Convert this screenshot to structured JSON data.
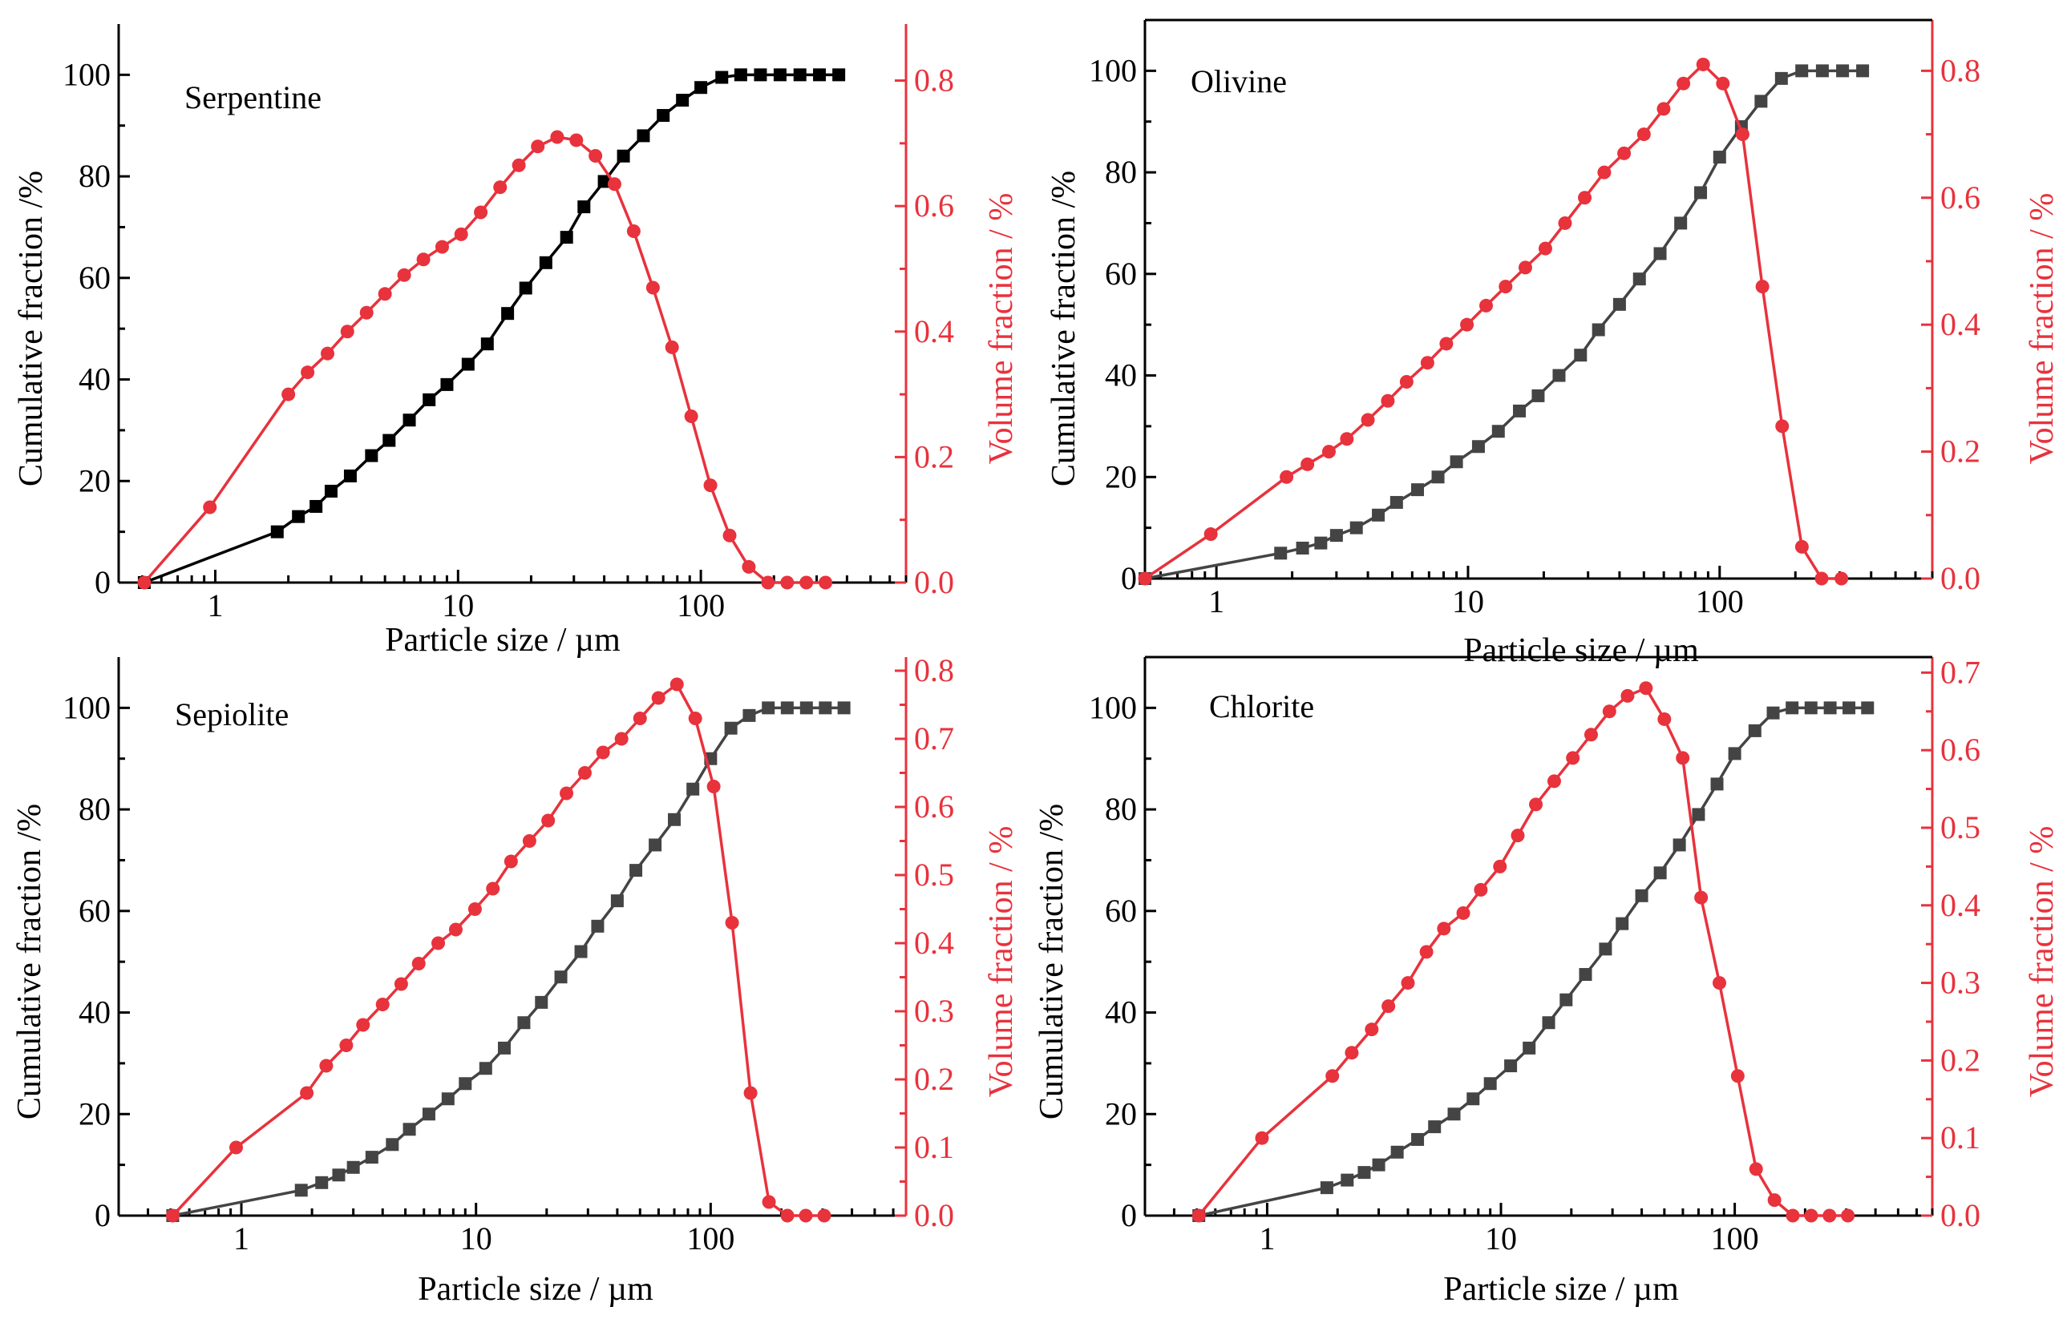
{
  "colors": {
    "cumulative": "#000000",
    "cumulative_gray": "#444444",
    "volume": "#e8323c"
  },
  "chart_data": [
    {
      "type": "line",
      "title": "Serpentine",
      "xlabel": "Particle size / µm",
      "ylabel_left": "Cumulative fraction /%",
      "ylabel_right": "Volume fraction / %",
      "xscale": "log",
      "xlim": [
        0.4,
        700
      ],
      "ylim_left": [
        0,
        110
      ],
      "ylim_right": [
        0,
        0.8901
      ],
      "x_ticks": [
        1,
        10,
        100
      ],
      "x_tick_labels": [
        "1",
        "10",
        "100"
      ],
      "y_left_ticks": [
        0,
        20,
        40,
        60,
        80,
        100
      ],
      "y_left_tick_labels": [
        "0",
        "20",
        "40",
        "60",
        "80",
        "100"
      ],
      "y_right_ticks": [
        0,
        0.2,
        0.4,
        0.6,
        0.8
      ],
      "y_right_tick_labels": [
        "0.0",
        "0.2",
        "0.4",
        "0.6",
        "0.8"
      ],
      "legend": "none",
      "series": [
        {
          "name": "Cumulative fraction",
          "axis": "left",
          "marker": "square",
          "color": "#000000",
          "x": [
            0.51,
            1.8,
            2.2,
            2.6,
            3.0,
            3.6,
            4.4,
            5.2,
            6.3,
            7.6,
            9.0,
            11.0,
            13.2,
            16.0,
            19.0,
            23.0,
            28.0,
            33.0,
            40.0,
            48.0,
            58.0,
            70.0,
            84.0,
            100.0,
            122.0,
            146.0,
            176.0,
            212.0,
            256.0,
            308.0,
            370.0
          ],
          "y": [
            0,
            10,
            13,
            15,
            18,
            21,
            25,
            28,
            32,
            36,
            39,
            43,
            47,
            53,
            58,
            63,
            68,
            74,
            79,
            84,
            88,
            92,
            95,
            97.5,
            99.5,
            100,
            100,
            100,
            100,
            100,
            100
          ]
        },
        {
          "name": "Volume fraction",
          "axis": "right",
          "marker": "circle",
          "color": "#e8323c",
          "x": [
            0.51,
            0.95,
            2.0,
            2.4,
            2.9,
            3.5,
            4.2,
            5.0,
            6.0,
            7.2,
            8.6,
            10.3,
            12.4,
            14.9,
            17.8,
            21.3,
            25.6,
            30.7,
            36.8,
            44.1,
            52.9,
            63.5,
            76.1,
            91.3,
            109.5,
            131.4,
            157.6,
            189.0,
            226.8,
            272.0,
            326.3
          ],
          "y": [
            0,
            0.12,
            0.3,
            0.335,
            0.365,
            0.4,
            0.43,
            0.46,
            0.49,
            0.515,
            0.535,
            0.555,
            0.59,
            0.63,
            0.665,
            0.695,
            0.71,
            0.705,
            0.68,
            0.635,
            0.56,
            0.47,
            0.375,
            0.265,
            0.155,
            0.075,
            0.025,
            0,
            0,
            0,
            0
          ]
        }
      ]
    },
    {
      "type": "line",
      "title": "Olivine",
      "xlabel": "Particle size / µm",
      "ylabel_left": "Cumulative fraction /%",
      "ylabel_right": "Volume fraction / %",
      "xscale": "log",
      "xlim": [
        0.52,
        700
      ],
      "ylim_left": [
        0,
        110
      ],
      "ylim_right": [
        0,
        0.88
      ],
      "x_ticks": [
        1,
        10,
        100
      ],
      "x_tick_labels": [
        "1",
        "10",
        "100"
      ],
      "y_left_ticks": [
        0,
        20,
        40,
        60,
        80,
        100
      ],
      "y_left_tick_labels": [
        "0",
        "20",
        "40",
        "60",
        "80",
        "100"
      ],
      "y_right_ticks": [
        0,
        0.2,
        0.4,
        0.6,
        0.8
      ],
      "y_right_tick_labels": [
        "0.0",
        "0.2",
        "0.4",
        "0.6",
        "0.8"
      ],
      "legend": "none",
      "series": [
        {
          "name": "Cumulative fraction",
          "axis": "left",
          "marker": "square",
          "color": "#444444",
          "x": [
            0.52,
            1.8,
            2.2,
            2.6,
            3.0,
            3.6,
            4.4,
            5.2,
            6.3,
            7.6,
            9.0,
            11.0,
            13.2,
            16.0,
            19.0,
            23.0,
            28.0,
            33.0,
            40.0,
            48.0,
            58.0,
            70.0,
            84.0,
            100.0,
            122.0,
            146.0,
            176.0,
            212.0,
            256.0,
            308.0,
            370.0
          ],
          "y": [
            0,
            5,
            6,
            7,
            8.5,
            10,
            12.5,
            15,
            17.5,
            20,
            23,
            26,
            29,
            33,
            36,
            40,
            44,
            49,
            54,
            59,
            64,
            70,
            76,
            83,
            89,
            94,
            98.5,
            100,
            100,
            100,
            100
          ]
        },
        {
          "name": "Volume fraction",
          "axis": "right",
          "marker": "circle",
          "color": "#e8323c",
          "x": [
            0.52,
            0.95,
            1.9,
            2.3,
            2.8,
            3.3,
            4.0,
            4.8,
            5.7,
            6.9,
            8.2,
            9.9,
            11.8,
            14.1,
            16.9,
            20.3,
            24.3,
            29.1,
            34.8,
            41.7,
            50.0,
            59.9,
            71.8,
            86.0,
            103.0,
            123.4,
            147.9,
            177.2,
            212.3,
            254.3,
            304.7
          ],
          "y": [
            0,
            0.07,
            0.16,
            0.18,
            0.2,
            0.22,
            0.25,
            0.28,
            0.31,
            0.34,
            0.37,
            0.4,
            0.43,
            0.46,
            0.49,
            0.52,
            0.56,
            0.6,
            0.64,
            0.67,
            0.7,
            0.74,
            0.78,
            0.81,
            0.78,
            0.7,
            0.46,
            0.24,
            0.05,
            0,
            0
          ]
        }
      ]
    },
    {
      "type": "line",
      "title": "Sepiolite",
      "xlabel": "Particle size / µm",
      "ylabel_left": "Cumulative fraction /%",
      "ylabel_right": "Volume fraction / %",
      "xscale": "log",
      "xlim": [
        0.3,
        680
      ],
      "ylim_left": [
        0,
        110
      ],
      "ylim_right": [
        0,
        0.82
      ],
      "x_ticks": [
        1,
        10,
        100
      ],
      "x_tick_labels": [
        "1",
        "10",
        "100"
      ],
      "y_left_ticks": [
        0,
        20,
        40,
        60,
        80,
        100
      ],
      "y_left_tick_labels": [
        "0",
        "20",
        "40",
        "60",
        "80",
        "100"
      ],
      "y_right_ticks": [
        0,
        0.1,
        0.2,
        0.3,
        0.4,
        0.5,
        0.6,
        0.7,
        0.8
      ],
      "y_right_tick_labels": [
        "0.0",
        "0.1",
        "0.2",
        "0.3",
        "0.4",
        "0.5",
        "0.6",
        "0.7",
        "0.8"
      ],
      "legend": "none",
      "series": [
        {
          "name": "Cumulative fraction",
          "axis": "left",
          "marker": "square",
          "color": "#444444",
          "x": [
            0.51,
            1.8,
            2.2,
            2.6,
            3.0,
            3.6,
            4.4,
            5.2,
            6.3,
            7.6,
            9.0,
            11.0,
            13.2,
            16.0,
            19.0,
            23.0,
            28.0,
            33.0,
            40.0,
            48.0,
            58.0,
            70.0,
            84.0,
            100.0,
            122.0,
            146.0,
            176.0,
            212.0,
            256.0,
            308.0,
            370.0
          ],
          "y": [
            0,
            5,
            6.5,
            8,
            9.5,
            11.5,
            14,
            17,
            20,
            23,
            26,
            29,
            33,
            38,
            42,
            47,
            52,
            57,
            62,
            68,
            73,
            78,
            84,
            90,
            96,
            98.5,
            100,
            100,
            100,
            100,
            100
          ]
        },
        {
          "name": "Volume fraction",
          "axis": "right",
          "marker": "circle",
          "color": "#e8323c",
          "x": [
            0.51,
            0.95,
            1.9,
            2.3,
            2.8,
            3.3,
            4.0,
            4.8,
            5.7,
            6.9,
            8.2,
            9.9,
            11.8,
            14.1,
            16.9,
            20.3,
            24.3,
            29.1,
            34.8,
            41.7,
            50.0,
            59.9,
            71.8,
            86.0,
            103.0,
            123.4,
            147.9,
            177.2,
            212.3,
            254.3,
            304.7
          ],
          "y": [
            0,
            0.1,
            0.18,
            0.22,
            0.25,
            0.28,
            0.31,
            0.34,
            0.37,
            0.4,
            0.42,
            0.45,
            0.48,
            0.52,
            0.55,
            0.58,
            0.62,
            0.65,
            0.68,
            0.7,
            0.73,
            0.76,
            0.78,
            0.73,
            0.63,
            0.43,
            0.18,
            0.02,
            0,
            0,
            0
          ]
        }
      ]
    },
    {
      "type": "line",
      "title": "Chlorite",
      "xlabel": "Particle size / µm",
      "ylabel_left": "Cumulative fraction /%",
      "ylabel_right": "Volume fraction / %",
      "xscale": "log",
      "xlim": [
        0.3,
        700
      ],
      "ylim_left": [
        0,
        110
      ],
      "ylim_right": [
        0,
        0.72
      ],
      "x_ticks": [
        1,
        10,
        100
      ],
      "x_tick_labels": [
        "1",
        "10",
        "100"
      ],
      "y_left_ticks": [
        0,
        20,
        40,
        60,
        80,
        100
      ],
      "y_left_tick_labels": [
        "0",
        "20",
        "40",
        "60",
        "80",
        "100"
      ],
      "y_right_ticks": [
        0,
        0.1,
        0.2,
        0.3,
        0.4,
        0.5,
        0.6,
        0.7
      ],
      "y_right_tick_labels": [
        "0.0",
        "0.1",
        "0.2",
        "0.3",
        "0.4",
        "0.5",
        "0.6",
        "0.7"
      ],
      "legend": "none",
      "series": [
        {
          "name": "Cumulative fraction",
          "axis": "left",
          "marker": "square",
          "color": "#444444",
          "x": [
            0.51,
            1.8,
            2.2,
            2.6,
            3.0,
            3.6,
            4.4,
            5.2,
            6.3,
            7.6,
            9.0,
            11.0,
            13.2,
            16.0,
            19.0,
            23.0,
            28.0,
            33.0,
            40.0,
            48.0,
            58.0,
            70.0,
            84.0,
            100.0,
            122.0,
            146.0,
            176.0,
            212.0,
            256.0,
            308.0,
            370.0
          ],
          "y": [
            0,
            5.5,
            7,
            8.5,
            10,
            12.5,
            15,
            17.5,
            20,
            23,
            26,
            29.5,
            33,
            38,
            42.5,
            47.5,
            52.5,
            57.5,
            63,
            67.5,
            73,
            79,
            85,
            91,
            95.5,
            99,
            100,
            100,
            100,
            100,
            100
          ]
        },
        {
          "name": "Volume fraction",
          "axis": "right",
          "marker": "circle",
          "color": "#e8323c",
          "x": [
            0.51,
            0.95,
            1.9,
            2.3,
            2.8,
            3.3,
            4.0,
            4.8,
            5.7,
            6.9,
            8.2,
            9.9,
            11.8,
            14.1,
            16.9,
            20.3,
            24.3,
            29.1,
            34.8,
            41.7,
            50.0,
            59.9,
            71.8,
            86.0,
            103.0,
            123.4,
            147.9,
            177.2,
            212.3,
            254.3,
            304.7
          ],
          "y": [
            0,
            0.1,
            0.18,
            0.21,
            0.24,
            0.27,
            0.3,
            0.34,
            0.37,
            0.39,
            0.42,
            0.45,
            0.49,
            0.53,
            0.56,
            0.59,
            0.62,
            0.65,
            0.67,
            0.68,
            0.64,
            0.59,
            0.41,
            0.3,
            0.18,
            0.06,
            0.02,
            0,
            0,
            0,
            0
          ]
        }
      ]
    }
  ]
}
